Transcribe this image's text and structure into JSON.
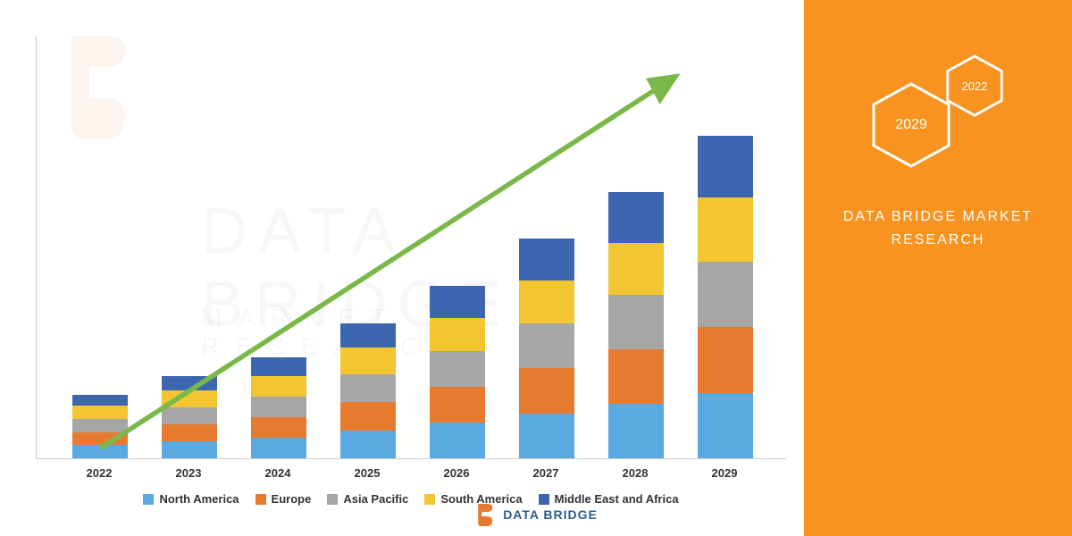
{
  "chart": {
    "type": "stacked-bar",
    "categories": [
      "2022",
      "2023",
      "2024",
      "2025",
      "2026",
      "2027",
      "2028",
      "2029"
    ],
    "series": [
      {
        "name": "North America",
        "color": "#5aa9e0",
        "values": [
          14,
          18,
          22,
          30,
          38,
          48,
          58,
          70
        ]
      },
      {
        "name": "Europe",
        "color": "#e67b30",
        "values": [
          14,
          18,
          22,
          30,
          38,
          48,
          58,
          70
        ]
      },
      {
        "name": "Asia Pacific",
        "color": "#a6a6a6",
        "values": [
          14,
          18,
          22,
          30,
          38,
          48,
          58,
          70
        ]
      },
      {
        "name": "South America",
        "color": "#f2c531",
        "values": [
          14,
          18,
          22,
          28,
          36,
          46,
          56,
          68
        ]
      },
      {
        "name": "Middle East and Africa",
        "color": "#3c66b0",
        "values": [
          12,
          16,
          20,
          26,
          34,
          44,
          54,
          66
        ]
      }
    ],
    "max_total": 400,
    "baseline_color": "#cccccc",
    "label_fontsize": 13,
    "label_color": "#333333",
    "arrow": {
      "color": "#7ab84a",
      "stroke_width": 5,
      "start": [
        70,
        410
      ],
      "end": [
        700,
        40
      ]
    }
  },
  "watermark": {
    "main": "DATA BRIDGE",
    "sub": "MARKET RESEARCH",
    "color": "rgba(200,200,200,0.15)"
  },
  "side_panel": {
    "bg_color": "#f7931e",
    "hex_large": "2029",
    "hex_small": "2022",
    "brand_line1": "DATA BRIDGE MARKET",
    "brand_line2": "RESEARCH",
    "hex_stroke": "#ffffff"
  },
  "footer_logo": {
    "text": "DATA BRIDGE",
    "icon_color": "#e67b30",
    "text_color": "#2e5c8a"
  }
}
